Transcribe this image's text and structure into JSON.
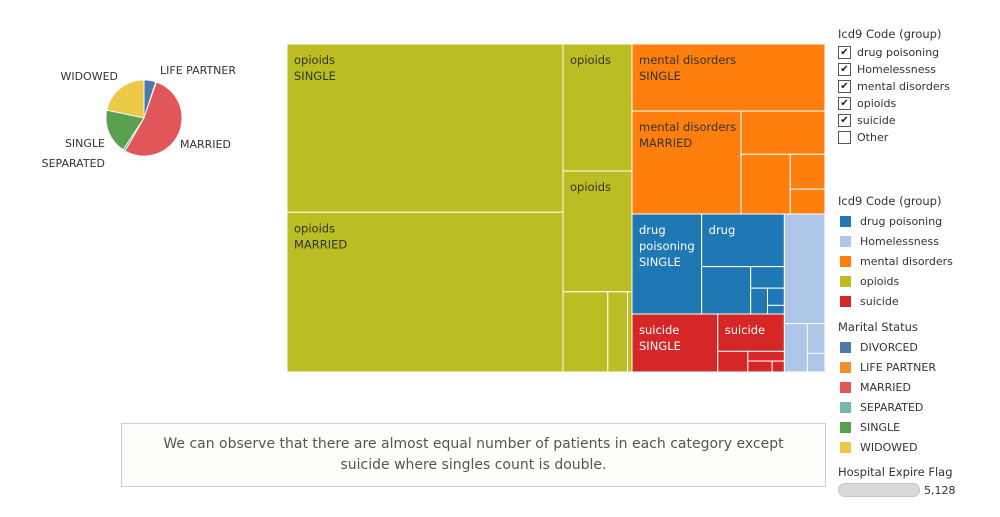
{
  "chart_data": [
    {
      "type": "pie",
      "title": "",
      "slices": [
        {
          "label": "DIVORCED",
          "value": 5,
          "color": "#4e79a7",
          "show_label": false
        },
        {
          "label": "LIFE PARTNER",
          "value": 0.3,
          "color": "#f28e2b",
          "show_label": true
        },
        {
          "label": "MARRIED",
          "value": 53,
          "color": "#e15759",
          "show_label": true
        },
        {
          "label": "SEPARATED",
          "value": 1,
          "color": "#76b7b2",
          "show_label": true
        },
        {
          "label": "SINGLE",
          "value": 19,
          "color": "#59a14f",
          "show_label": true
        },
        {
          "label": "WIDOWED",
          "value": 21.7,
          "color": "#edc948",
          "show_label": true
        }
      ]
    },
    {
      "type": "treemap",
      "title": "",
      "groups": [
        {
          "name": "opioids",
          "color": "#bcbd22",
          "text_color": "#333333",
          "size": 44.5,
          "split": "v",
          "cells": [
            {
              "size": 51.3,
              "lines": [
                "opioids",
                "SINGLE"
              ]
            },
            {
              "size": 48.7,
              "lines": [
                "opioids",
                "MARRIED"
              ]
            },
            {
              "size": 12.2,
              "lines": [
                "opioids"
              ]
            },
            {
              "size": 11.6,
              "lines": [
                "opioids"
              ]
            },
            {
              "size": 5,
              "lines": []
            },
            {
              "size": 2.2,
              "lines": []
            },
            {
              "size": 0.5,
              "lines": []
            }
          ]
        },
        {
          "name": "mental disorders",
          "color": "#ff7f0e",
          "text_color": "#333333",
          "size": 15.5,
          "split": "h",
          "cells": [
            {
              "size": 37.5,
              "lines": [
                "mental disorders",
                "SINGLE"
              ]
            },
            {
              "size": 32.5,
              "lines": [
                "mental disorders",
                "MARRIED"
              ]
            },
            {
              "size": 10.5,
              "lines": []
            },
            {
              "size": 8.5,
              "lines": []
            },
            {
              "size": 3.5,
              "lines": []
            },
            {
              "size": 2.5,
              "lines": []
            }
          ]
        },
        {
          "name": "drug poisoning",
          "color": "#1f77b4",
          "text_color": "#ffffff",
          "size": 10,
          "split": "v",
          "cells": [
            {
              "size": 48,
              "lines": [
                "drug",
                "poisoning",
                "SINGLE"
              ]
            },
            {
              "size": 30,
              "lines": [
                "drug"
              ]
            },
            {
              "size": 16,
              "lines": []
            },
            {
              "size": 5,
              "lines": []
            },
            {
              "size": 3,
              "lines": []
            },
            {
              "size": 2,
              "lines": []
            },
            {
              "size": 1,
              "lines": []
            }
          ]
        },
        {
          "name": "suicide",
          "color": "#d62728",
          "text_color": "#ffffff",
          "size": 5,
          "split": "v",
          "cells": [
            {
              "size": 56,
              "lines": [
                "suicide",
                "SINGLE"
              ]
            },
            {
              "size": 28,
              "lines": [
                "suicide"
              ]
            },
            {
              "size": 7,
              "lines": []
            },
            {
              "size": 4,
              "lines": []
            },
            {
              "size": 3,
              "lines": []
            },
            {
              "size": 1.5,
              "lines": []
            }
          ]
        },
        {
          "name": "Homelessness",
          "color": "#aec7e8",
          "text_color": "#333333",
          "size": 4,
          "split": "h",
          "cells": [
            {
              "size": 68,
              "lines": []
            },
            {
              "size": 17,
              "lines": []
            },
            {
              "size": 8,
              "lines": []
            },
            {
              "size": 5,
              "lines": []
            }
          ]
        }
      ]
    }
  ],
  "filter": {
    "title": "Icd9 Code (group)",
    "items": [
      {
        "label": "drug poisoning",
        "checked": true
      },
      {
        "label": "Homelessness",
        "checked": true
      },
      {
        "label": "mental disorders",
        "checked": true
      },
      {
        "label": "opioids",
        "checked": true
      },
      {
        "label": "suicide",
        "checked": true
      },
      {
        "label": "Other",
        "checked": false
      }
    ]
  },
  "icd_legend": {
    "title": "Icd9 Code (group)",
    "items": [
      {
        "label": "drug poisoning",
        "color": "#1f77b4"
      },
      {
        "label": "Homelessness",
        "color": "#aec7e8"
      },
      {
        "label": "mental disorders",
        "color": "#ff7f0e"
      },
      {
        "label": "opioids",
        "color": "#bcbd22"
      },
      {
        "label": "suicide",
        "color": "#d62728"
      }
    ]
  },
  "marital_legend": {
    "title": "Marital Status",
    "items": [
      {
        "label": "DIVORCED",
        "color": "#4e79a7"
      },
      {
        "label": "LIFE PARTNER",
        "color": "#f28e2b"
      },
      {
        "label": "MARRIED",
        "color": "#e15759"
      },
      {
        "label": "SEPARATED",
        "color": "#76b7b2"
      },
      {
        "label": "SINGLE",
        "color": "#59a14f"
      },
      {
        "label": "WIDOWED",
        "color": "#edc948"
      }
    ]
  },
  "expire_flag": {
    "title": "Hospital Expire Flag",
    "value": "5,128"
  },
  "caption": {
    "text": "We can observe that there are almost equal number of patients in each category except suicide where singles count is double."
  }
}
